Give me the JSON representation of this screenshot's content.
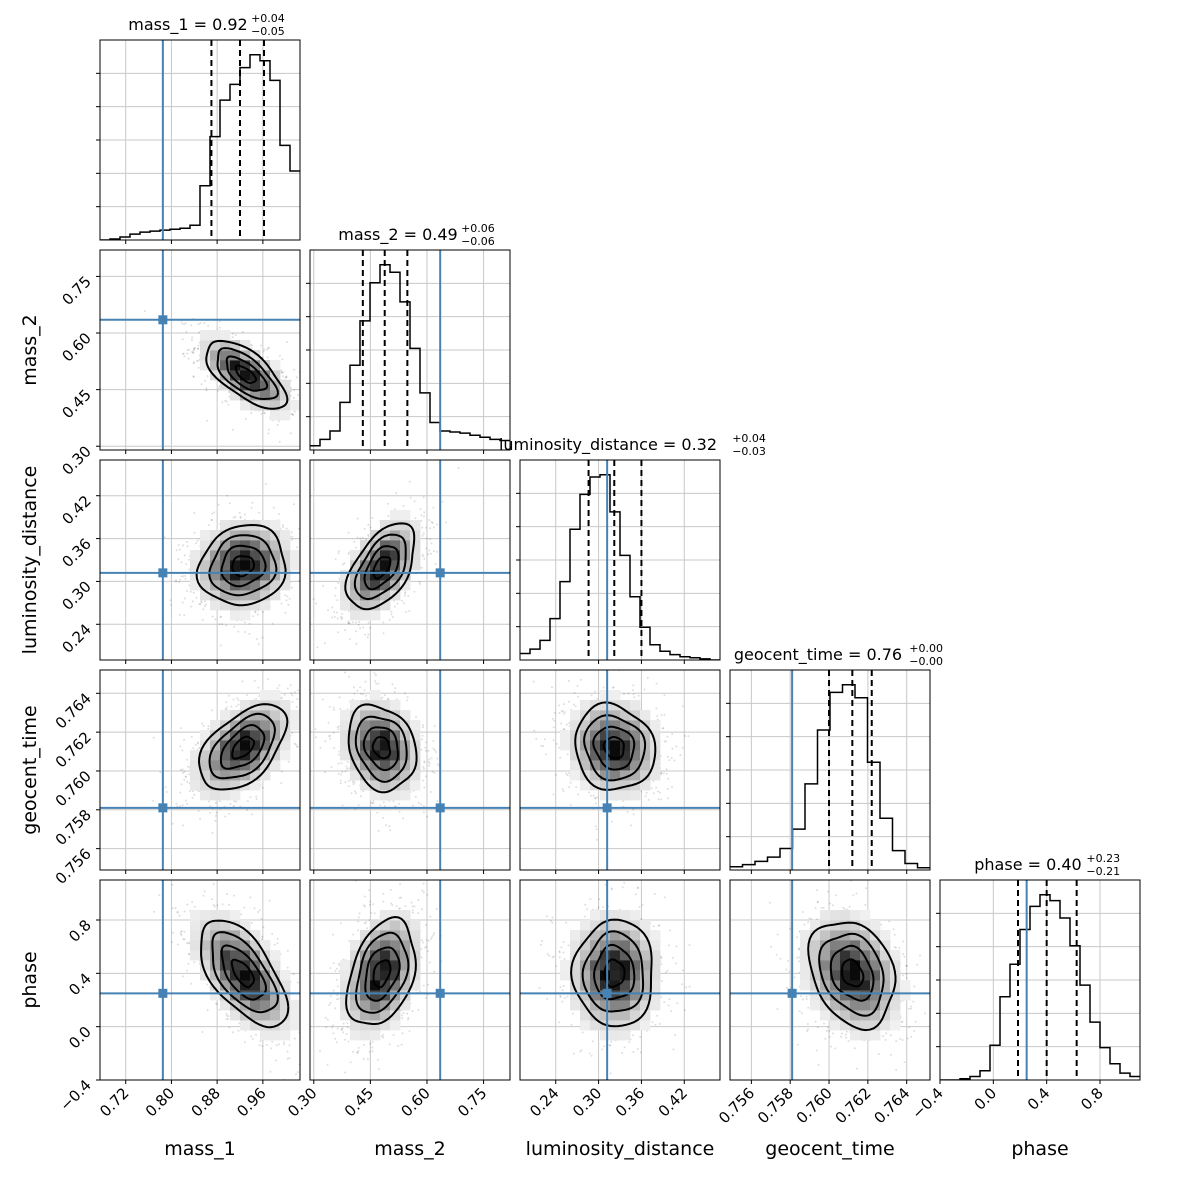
{
  "chart_data": {
    "type": "corner",
    "parameters": [
      "mass_1",
      "mass_2",
      "luminosity_distance",
      "geocent_time",
      "phase"
    ],
    "axis_labels": [
      "mass_1",
      "mass_2",
      "luminosity_distance",
      "geocent_time",
      "phase"
    ],
    "ranges": [
      [
        0.675,
        1.025
      ],
      [
        0.29,
        0.82
      ],
      [
        0.19,
        0.47
      ],
      [
        0.7549,
        0.7652
      ],
      [
        -0.4,
        1.1
      ]
    ],
    "ticks": {
      "mass_1": [
        "0.72",
        "0.80",
        "0.88",
        "0.96"
      ],
      "mass_2": [
        "0.30",
        "0.45",
        "0.60",
        "0.75"
      ],
      "luminosity_distance": [
        "0.24",
        "0.30",
        "0.36",
        "0.42"
      ],
      "geocent_time": [
        "0.756",
        "0.758",
        "0.760",
        "0.762",
        "0.764"
      ],
      "phase": [
        "−0.4",
        "0.0",
        "0.4",
        "0.8"
      ]
    },
    "tick_values": {
      "mass_1": [
        0.72,
        0.8,
        0.88,
        0.96
      ],
      "mass_2": [
        0.3,
        0.45,
        0.6,
        0.75
      ],
      "luminosity_distance": [
        0.24,
        0.3,
        0.36,
        0.42
      ],
      "geocent_time": [
        0.756,
        0.758,
        0.76,
        0.762,
        0.764
      ],
      "phase": [
        -0.4,
        0.0,
        0.4,
        0.8
      ]
    },
    "truths": [
      0.785,
      0.635,
      0.312,
      0.7581,
      0.25
    ],
    "truth_color": "#4682b4",
    "titles": [
      {
        "param": "mass_1",
        "text": "mass_1 = 0.92",
        "plus": "+0.04",
        "minus": "−0.05"
      },
      {
        "param": "mass_2",
        "text": "mass_2 = 0.49",
        "plus": "+0.06",
        "minus": "−0.06"
      },
      {
        "param": "luminosity_distance",
        "text": "luminosity_distance = 0.32",
        "plus": "+0.04",
        "minus": "−0.03"
      },
      {
        "param": "geocent_time",
        "text": "geocent_time = 0.76",
        "plus": "+0.00",
        "minus": "−0.00"
      },
      {
        "param": "phase",
        "text": "phase = 0.40",
        "plus": "+0.23",
        "minus": "−0.21"
      }
    ],
    "quantiles": [
      [
        0.87,
        0.92,
        0.962
      ],
      [
        0.43,
        0.488,
        0.548
      ],
      [
        0.286,
        0.322,
        0.36
      ],
      [
        0.76,
        0.7612,
        0.7622
      ],
      [
        0.185,
        0.4,
        0.625
      ]
    ],
    "histograms": [
      {
        "param": "mass_1",
        "x0": 0.675,
        "x1": 1.025,
        "counts": [
          0,
          1,
          3,
          6,
          8,
          9,
          10,
          11,
          12,
          15,
          55,
          105,
          142,
          158,
          175,
          188,
          182,
          162,
          96,
          70
        ]
      },
      {
        "param": "mass_2",
        "x0": 0.29,
        "x1": 0.82,
        "counts": [
          4,
          10,
          18,
          45,
          80,
          122,
          158,
          175,
          168,
          140,
          96,
          54,
          26,
          18,
          17,
          16,
          14,
          12,
          10,
          9
        ]
      },
      {
        "param": "luminosity_distance",
        "x0": 0.19,
        "x1": 0.47,
        "counts": [
          6,
          10,
          18,
          38,
          72,
          120,
          152,
          168,
          170,
          136,
          96,
          58,
          30,
          14,
          8,
          5,
          3,
          2,
          1,
          0
        ]
      },
      {
        "param": "geocent_time",
        "x0": 0.7549,
        "x1": 0.7652,
        "counts": [
          3,
          5,
          8,
          12,
          20,
          38,
          80,
          130,
          165,
          172,
          160,
          100,
          48,
          18,
          6,
          2
        ]
      },
      {
        "param": "phase",
        "x0": -0.4,
        "x1": 1.1,
        "counts": [
          0,
          0,
          1,
          3,
          8,
          30,
          72,
          100,
          130,
          150,
          160,
          155,
          140,
          116,
          82,
          50,
          28,
          14,
          6,
          3
        ]
      }
    ],
    "bivariate": [
      {
        "x": "mass_1",
        "y": "mass_2",
        "mean": [
          0.93,
          0.49
        ],
        "sd": [
          0.035,
          0.045
        ],
        "rho": -0.65
      },
      {
        "x": "mass_1",
        "y": "luminosity_distance",
        "mean": [
          0.925,
          0.322
        ],
        "sd": [
          0.038,
          0.028
        ],
        "rho": 0.1
      },
      {
        "x": "mass_2",
        "y": "luminosity_distance",
        "mean": [
          0.48,
          0.32
        ],
        "sd": [
          0.045,
          0.03
        ],
        "rho": 0.5
      },
      {
        "x": "mass_1",
        "y": "geocent_time",
        "mean": [
          0.925,
          0.7612
        ],
        "sd": [
          0.038,
          0.0011
        ],
        "rho": 0.5
      },
      {
        "x": "mass_2",
        "y": "geocent_time",
        "mean": [
          0.48,
          0.7612
        ],
        "sd": [
          0.045,
          0.0011
        ],
        "rho": -0.2
      },
      {
        "x": "luminosity_distance",
        "y": "geocent_time",
        "mean": [
          0.322,
          0.7612
        ],
        "sd": [
          0.028,
          0.0011
        ],
        "rho": -0.1
      },
      {
        "x": "mass_1",
        "y": "phase",
        "mean": [
          0.925,
          0.4
        ],
        "sd": [
          0.038,
          0.2
        ],
        "rho": -0.6
      },
      {
        "x": "mass_2",
        "y": "phase",
        "mean": [
          0.48,
          0.4
        ],
        "sd": [
          0.045,
          0.2
        ],
        "rho": 0.35
      },
      {
        "x": "luminosity_distance",
        "y": "phase",
        "mean": [
          0.322,
          0.4
        ],
        "sd": [
          0.028,
          0.2
        ],
        "rho": 0.0
      },
      {
        "x": "geocent_time",
        "y": "phase",
        "mean": [
          0.7612,
          0.4
        ],
        "sd": [
          0.0011,
          0.2
        ],
        "rho": -0.25
      }
    ],
    "grid": true
  }
}
